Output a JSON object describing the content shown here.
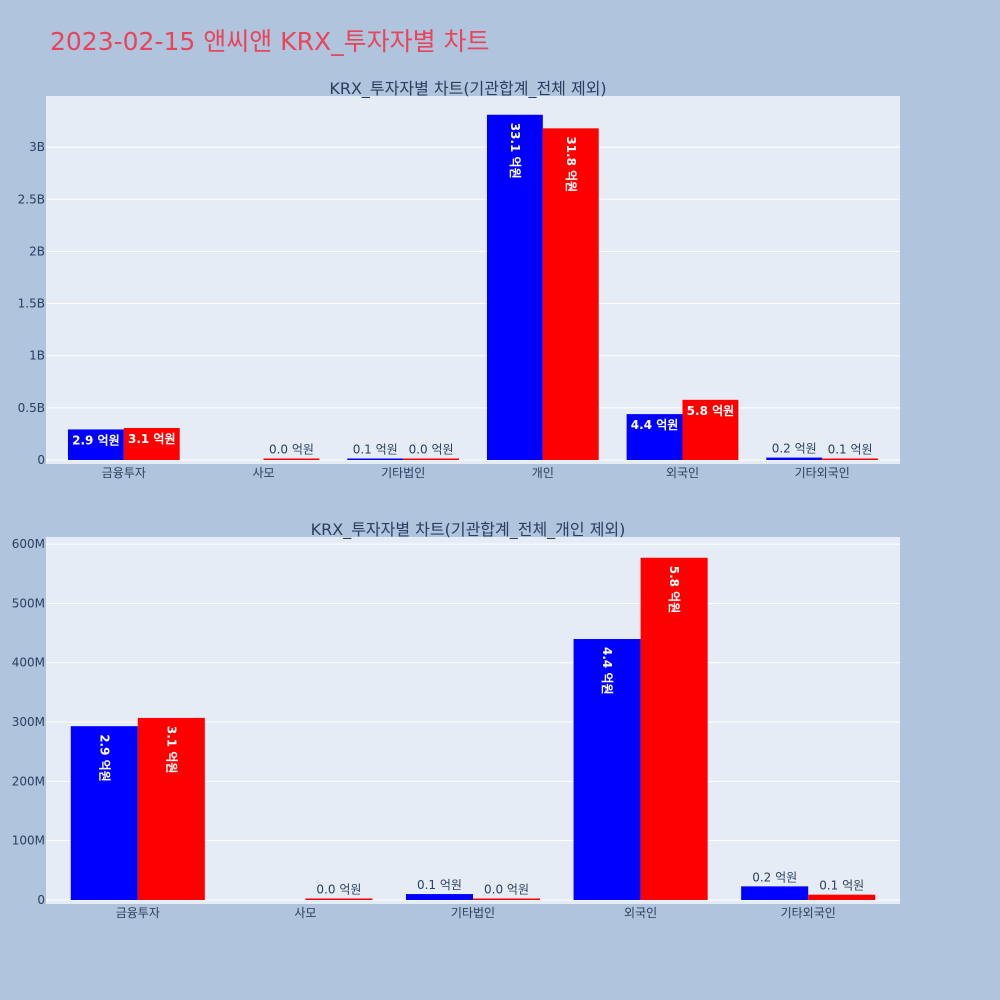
{
  "page": {
    "title": "2023-02-15 앤씨앤 KRX_투자자별 차트",
    "background": "#b0c4de",
    "title_color": "#e8445a"
  },
  "colors": {
    "series_a": "#0000ff",
    "series_b": "#ff0000",
    "plot_bg": "#e5ecf6"
  },
  "chart_data": [
    {
      "type": "bar",
      "title": "KRX_투자자별 차트(기관합계_전체 제외)",
      "categories": [
        "금융투자",
        "사모",
        "기타법인",
        "개인",
        "외국인",
        "기타외국인"
      ],
      "series": [
        {
          "name": "series_a",
          "values": [
            293000000,
            0,
            10000000,
            3310000000,
            440000000,
            23000000
          ],
          "labels": [
            "2.9 억원",
            "",
            "0.1 억원",
            "33.1 억원",
            "4.4 억원",
            "0.2 억원"
          ]
        },
        {
          "name": "series_b",
          "values": [
            307000000,
            2000000,
            1000000,
            3180000000,
            577000000,
            9000000
          ],
          "labels": [
            "3.1 억원",
            "0.0 억원",
            "0.0 억원",
            "31.8 억원",
            "5.8 억원",
            "0.1 억원"
          ]
        }
      ],
      "yticks": [
        0,
        500000000,
        1000000000,
        1500000000,
        2000000000,
        2500000000,
        3000000000
      ],
      "ytick_labels": [
        "0",
        "0.5B",
        "1B",
        "1.5B",
        "2B",
        "2.5B",
        "3B"
      ],
      "ylim": [
        0,
        3490000000
      ]
    },
    {
      "type": "bar",
      "title": "KRX_투자자별 차트(기관합계_전체_개인 제외)",
      "categories": [
        "금융투자",
        "사모",
        "기타법인",
        "외국인",
        "기타외국인"
      ],
      "series": [
        {
          "name": "series_a",
          "values": [
            293000000,
            0,
            10000000,
            440000000,
            23000000
          ],
          "labels": [
            "2.9 억원",
            "",
            "0.1 억원",
            "4.4 억원",
            "0.2 억원"
          ]
        },
        {
          "name": "series_b",
          "values": [
            307000000,
            2000000,
            1000000,
            577000000,
            9000000
          ],
          "labels": [
            "3.1 억원",
            "0.0 억원",
            "0.0 억원",
            "5.8 억원",
            "0.1 억원"
          ]
        }
      ],
      "yticks": [
        0,
        100000000,
        200000000,
        300000000,
        400000000,
        500000000,
        600000000
      ],
      "ytick_labels": [
        "0",
        "100M",
        "200M",
        "300M",
        "400M",
        "500M",
        "600M"
      ],
      "ylim": [
        0,
        612000000
      ]
    }
  ]
}
